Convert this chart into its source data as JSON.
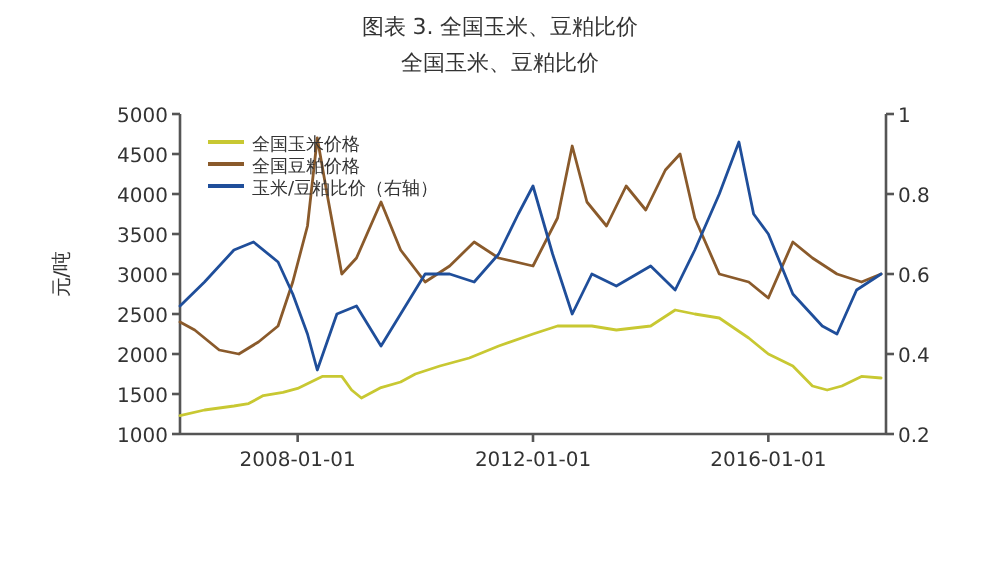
{
  "chart_data": {
    "type": "line",
    "title": "图表 3. 全国玉米、豆粕比价",
    "subtitle": "全国玉米、豆粕比价",
    "ylabel": "元/吨",
    "xlim": [
      "2006-01",
      "2018-01"
    ],
    "xticks": [
      {
        "value": "2008-01-01",
        "label": "2008-01-01"
      },
      {
        "value": "2012-01-01",
        "label": "2012-01-01"
      },
      {
        "value": "2016-01-01",
        "label": "2016-01-01"
      }
    ],
    "ylim": [
      1000,
      5000
    ],
    "yticks": [
      1000,
      1500,
      2000,
      2500,
      3000,
      3500,
      4000,
      4500,
      5000
    ],
    "y2lim": [
      0.2,
      1
    ],
    "y2ticks": [
      0.2,
      0.4,
      0.6,
      0.8,
      1
    ],
    "legend": "top left",
    "grid": false,
    "marker": "none",
    "line_style": "solid",
    "series": [
      {
        "name": "全国玉米价格",
        "color": "#c8c832",
        "x": [
          "2006-01",
          "2006-06",
          "2006-12",
          "2007-03",
          "2007-06",
          "2007-10",
          "2008-01",
          "2008-06",
          "2008-10",
          "2008-12",
          "2009-02",
          "2009-06",
          "2009-10",
          "2010-01",
          "2010-06",
          "2010-12",
          "2011-06",
          "2012-01",
          "2012-06",
          "2013-01",
          "2013-06",
          "2014-01",
          "2014-06",
          "2014-10",
          "2015-03",
          "2015-09",
          "2016-01",
          "2016-06",
          "2016-10",
          "2017-01",
          "2017-04",
          "2017-08",
          "2017-12"
        ],
        "values": [
          1230,
          1300,
          1350,
          1380,
          1480,
          1520,
          1570,
          1720,
          1720,
          1550,
          1450,
          1580,
          1650,
          1750,
          1850,
          1950,
          2100,
          2250,
          2350,
          2350,
          2300,
          2350,
          2550,
          2500,
          2450,
          2200,
          2000,
          1850,
          1600,
          1550,
          1600,
          1720,
          1700
        ]
      },
      {
        "name": "全国豆粕价格",
        "color": "#8a5a2b",
        "x": [
          "2006-01",
          "2006-04",
          "2006-09",
          "2007-01",
          "2007-05",
          "2007-09",
          "2007-12",
          "2008-03",
          "2008-05",
          "2008-07",
          "2008-10",
          "2009-01",
          "2009-06",
          "2009-10",
          "2010-03",
          "2010-08",
          "2011-01",
          "2011-06",
          "2012-01",
          "2012-06",
          "2012-09",
          "2012-12",
          "2013-04",
          "2013-08",
          "2013-12",
          "2014-04",
          "2014-07",
          "2014-10",
          "2015-03",
          "2015-09",
          "2016-01",
          "2016-06",
          "2016-10",
          "2017-03",
          "2017-08",
          "2017-12"
        ],
        "values": [
          2400,
          2300,
          2050,
          2000,
          2150,
          2350,
          2900,
          3600,
          4700,
          4000,
          3000,
          3200,
          3900,
          3300,
          2900,
          3100,
          3400,
          3200,
          3100,
          3700,
          4600,
          3900,
          3600,
          4100,
          3800,
          4300,
          4500,
          3700,
          3000,
          2900,
          2700,
          3400,
          3200,
          3000,
          2900,
          3000
        ]
      },
      {
        "name": "玉米/豆粕比价（右轴）",
        "color": "#1f4e9a",
        "axis": "y2",
        "x": [
          "2006-01",
          "2006-06",
          "2006-12",
          "2007-04",
          "2007-09",
          "2007-12",
          "2008-03",
          "2008-05",
          "2008-09",
          "2009-01",
          "2009-06",
          "2009-10",
          "2010-03",
          "2010-08",
          "2011-01",
          "2011-06",
          "2011-10",
          "2012-01",
          "2012-05",
          "2012-09",
          "2013-01",
          "2013-06",
          "2014-01",
          "2014-06",
          "2014-10",
          "2015-03",
          "2015-07",
          "2015-10",
          "2016-01",
          "2016-06",
          "2016-12",
          "2017-03",
          "2017-07",
          "2017-12"
        ],
        "values": [
          0.52,
          0.58,
          0.66,
          0.68,
          0.63,
          0.55,
          0.45,
          0.36,
          0.5,
          0.52,
          0.42,
          0.5,
          0.6,
          0.6,
          0.58,
          0.65,
          0.75,
          0.82,
          0.65,
          0.5,
          0.6,
          0.57,
          0.62,
          0.56,
          0.66,
          0.8,
          0.93,
          0.75,
          0.7,
          0.55,
          0.47,
          0.45,
          0.56,
          0.6
        ]
      }
    ]
  }
}
